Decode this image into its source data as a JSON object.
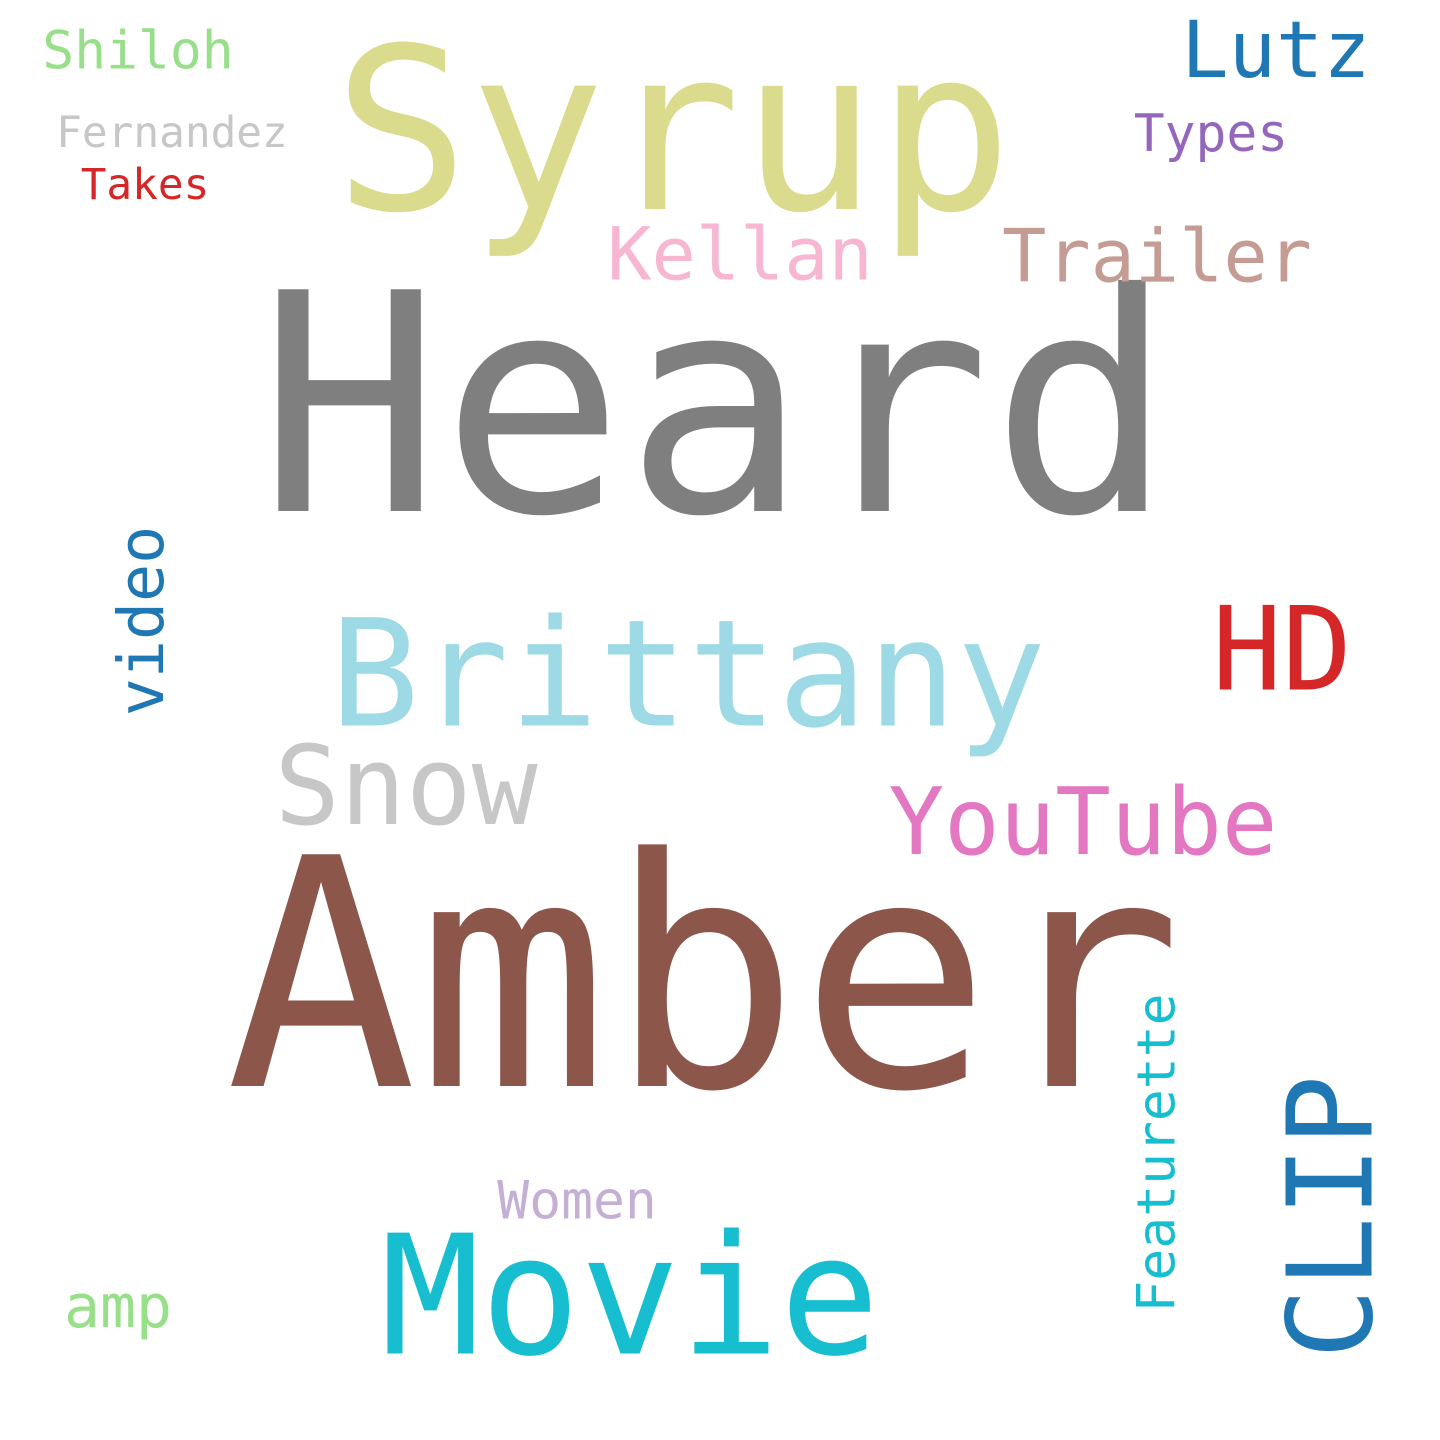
{
  "words": [
    {
      "text": "Heard",
      "color": "#7f7f7f"
    },
    {
      "text": "Amber",
      "color": "#8c564b"
    },
    {
      "text": "Syrup",
      "color": "#dbdb8d"
    },
    {
      "text": "Brittany",
      "color": "#9edae5"
    },
    {
      "text": "Movie",
      "color": "#17becf"
    },
    {
      "text": "CLIP",
      "color": "#1f77b4"
    },
    {
      "text": "YouTube",
      "color": "#e377c2"
    },
    {
      "text": "Snow",
      "color": "#c7c7c7"
    },
    {
      "text": "video",
      "color": "#1f77b4"
    },
    {
      "text": "HD",
      "color": "#d62728"
    },
    {
      "text": "Kellan",
      "color": "#f7b6d2"
    },
    {
      "text": "Trailer",
      "color": "#c49c94"
    },
    {
      "text": "Featurette",
      "color": "#17becf"
    },
    {
      "text": "Lutz",
      "color": "#1f77b4"
    },
    {
      "text": "Shiloh",
      "color": "#98df8a"
    },
    {
      "text": "amp",
      "color": "#98df8a"
    },
    {
      "text": "Women",
      "color": "#c5b0d5"
    },
    {
      "text": "Types",
      "color": "#9467bd"
    },
    {
      "text": "Fernandez",
      "color": "#c7c7c7"
    },
    {
      "text": "Takes",
      "color": "#d62728"
    }
  ]
}
